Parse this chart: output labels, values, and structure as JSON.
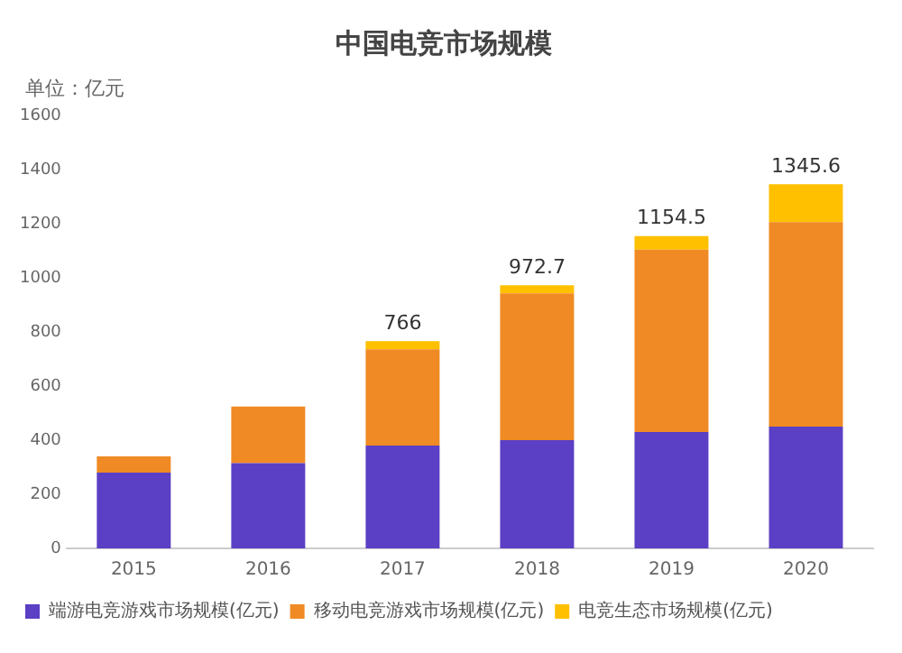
{
  "chart_data": {
    "type": "bar",
    "title": "中国电竞市场规模",
    "ylabel": "单位：亿元",
    "categories": [
      "2015",
      "2016",
      "2017",
      "2018",
      "2019",
      "2020"
    ],
    "stacked": true,
    "series": [
      {
        "name": "端游电竞游戏市场规模(亿元)",
        "color": "#5b3fc4",
        "values": [
          280,
          315,
          380,
          400,
          430,
          450
        ]
      },
      {
        "name": "移动电竞游戏市场规模(亿元)",
        "color": "#f08a24",
        "values": [
          60,
          209,
          356,
          542.7,
          674.5,
          755.6
        ]
      },
      {
        "name": "电竞生态市场规模(亿元)",
        "color": "#ffc000",
        "values": [
          0,
          0,
          30,
          30,
          50,
          140
        ]
      }
    ],
    "totals": [
      null,
      null,
      "766",
      "972.7",
      "1154.5",
      "1345.6"
    ],
    "ylim": [
      0,
      1600
    ],
    "yticks": [
      0,
      200,
      400,
      600,
      800,
      1000,
      1200,
      1400,
      1600
    ],
    "grid": false,
    "legend": "bottom"
  }
}
